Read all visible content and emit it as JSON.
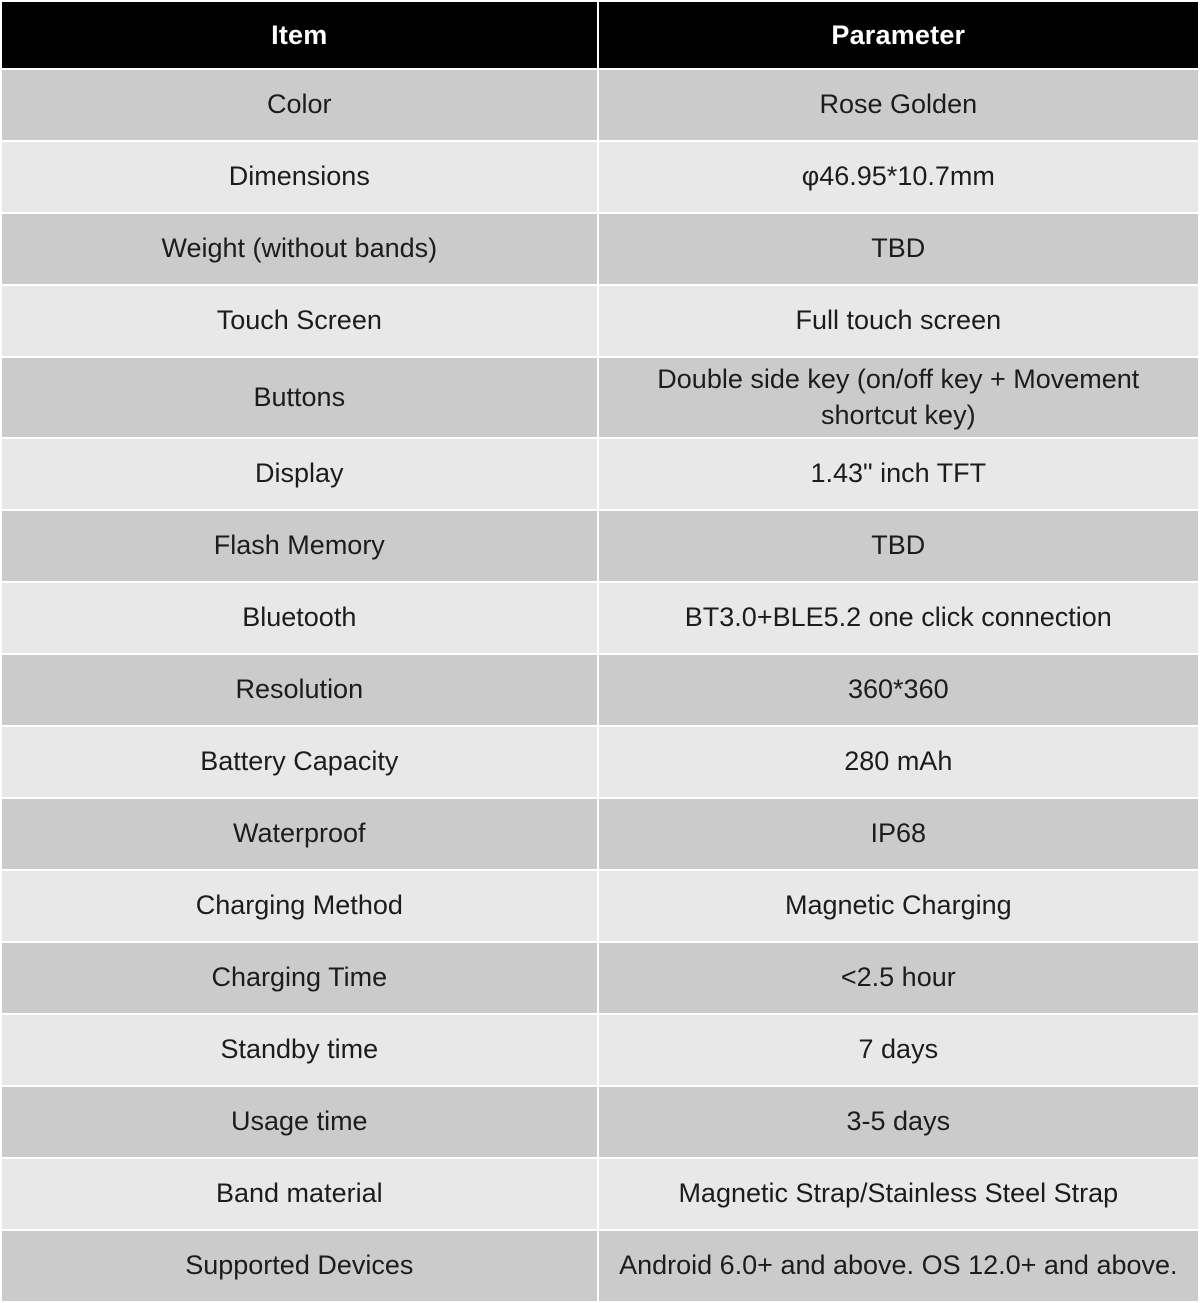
{
  "table": {
    "headers": [
      {
        "label": "Item"
      },
      {
        "label": "Parameter"
      }
    ],
    "rows": [
      {
        "item": "Color",
        "parameter": "Rose Golden"
      },
      {
        "item": "Dimensions",
        "parameter": "φ46.95*10.7mm"
      },
      {
        "item": "Weight (without bands)",
        "parameter": "TBD"
      },
      {
        "item": "Touch Screen",
        "parameter": "Full touch screen"
      },
      {
        "item": "Buttons",
        "parameter": "Double side key (on/off key + Movement shortcut key)"
      },
      {
        "item": "Display",
        "parameter": "1.43\"  inch TFT"
      },
      {
        "item": "Flash Memory",
        "parameter": "TBD"
      },
      {
        "item": "Bluetooth",
        "parameter": "BT3.0+BLE5.2 one click connection"
      },
      {
        "item": "Resolution",
        "parameter": "360*360"
      },
      {
        "item": "Battery Capacity",
        "parameter": "280 mAh"
      },
      {
        "item": "Waterproof",
        "parameter": "IP68"
      },
      {
        "item": "Charging Method",
        "parameter": "Magnetic Charging"
      },
      {
        "item": "Charging Time",
        "parameter": "<2.5 hour"
      },
      {
        "item": "Standby time",
        "parameter": "7 days"
      },
      {
        "item": "Usage time",
        "parameter": "3-5 days"
      },
      {
        "item": "Band material",
        "parameter": "Magnetic Strap/Stainless Steel Strap"
      },
      {
        "item": "Supported Devices",
        "parameter": "Android 6.0+ and above. OS 12.0+ and above."
      }
    ]
  },
  "colors": {
    "page_bg": "#ffffff",
    "header_bg": "#000000",
    "header_text": "#ffffff",
    "row_dark": "#cbcbcb",
    "row_light": "#e8e8e8",
    "cell_text": "#1c1c1c",
    "divider": "#ffffff"
  }
}
